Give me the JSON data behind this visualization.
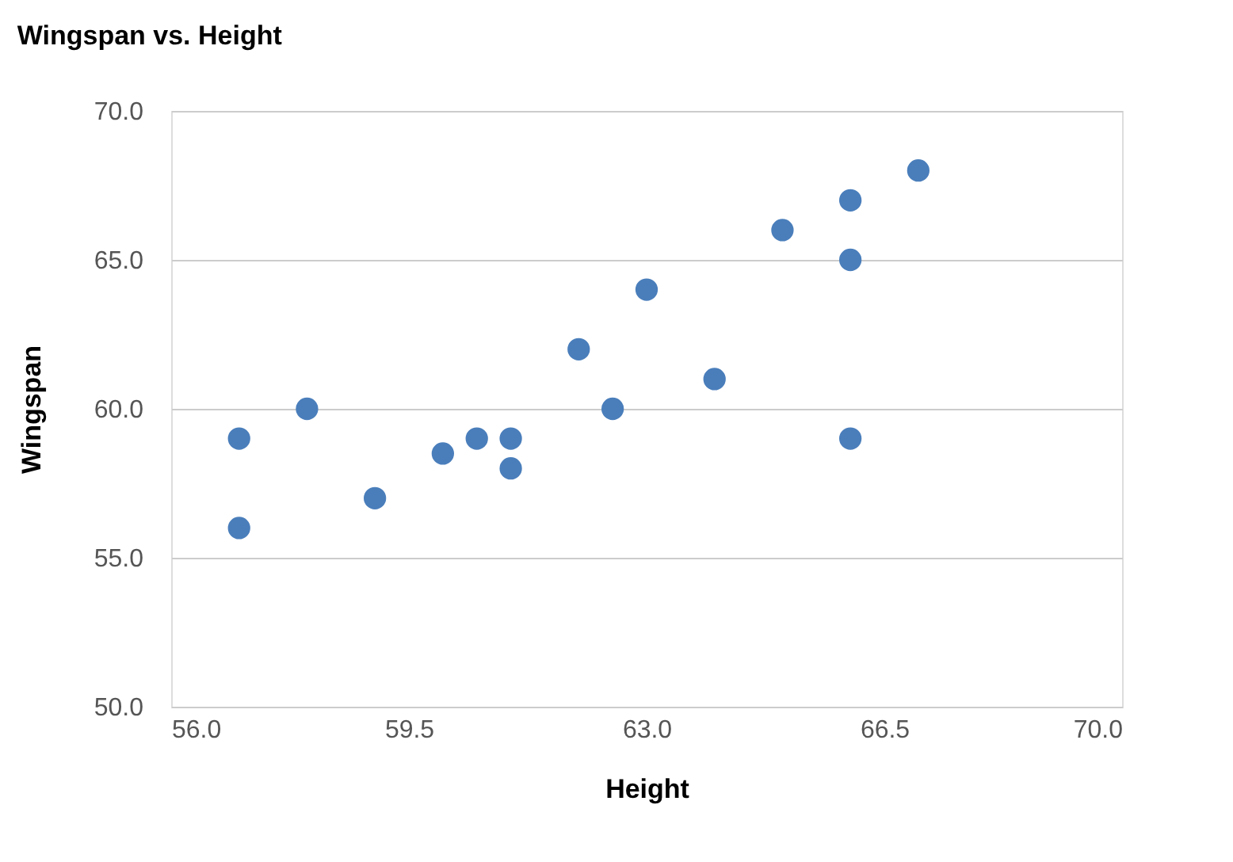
{
  "chart_data": {
    "type": "scatter",
    "title": "Wingspan vs. Height",
    "xlabel": "Height",
    "ylabel": "Wingspan",
    "x": [
      57,
      57,
      58,
      59,
      60,
      60.5,
      61,
      61,
      62,
      62.5,
      63,
      64,
      65,
      66,
      66,
      66,
      67
    ],
    "series": [
      {
        "color": "#4a7ebb",
        "values": [
          59,
          56,
          60,
          57,
          58.5,
          59,
          59,
          58,
          62,
          60,
          64,
          61,
          66,
          67,
          65,
          59,
          68
        ]
      }
    ],
    "xlim": [
      56,
      70
    ],
    "xticks": [
      {
        "value": 56,
        "label": "56.0"
      },
      {
        "value": 59.5,
        "label": "59.5"
      },
      {
        "value": 63,
        "label": "63.0"
      },
      {
        "value": 66.5,
        "label": "66.5"
      },
      {
        "value": 70,
        "label": "70.0"
      }
    ],
    "ylim": [
      50,
      70
    ],
    "yticks": [
      {
        "value": 50,
        "label": "50.0"
      },
      {
        "value": 55,
        "label": "55.0"
      },
      {
        "value": 60,
        "label": "60.0"
      },
      {
        "value": 65,
        "label": "65.0"
      },
      {
        "value": 70,
        "label": "70.0"
      }
    ],
    "grid": "y",
    "marker": "circle"
  }
}
